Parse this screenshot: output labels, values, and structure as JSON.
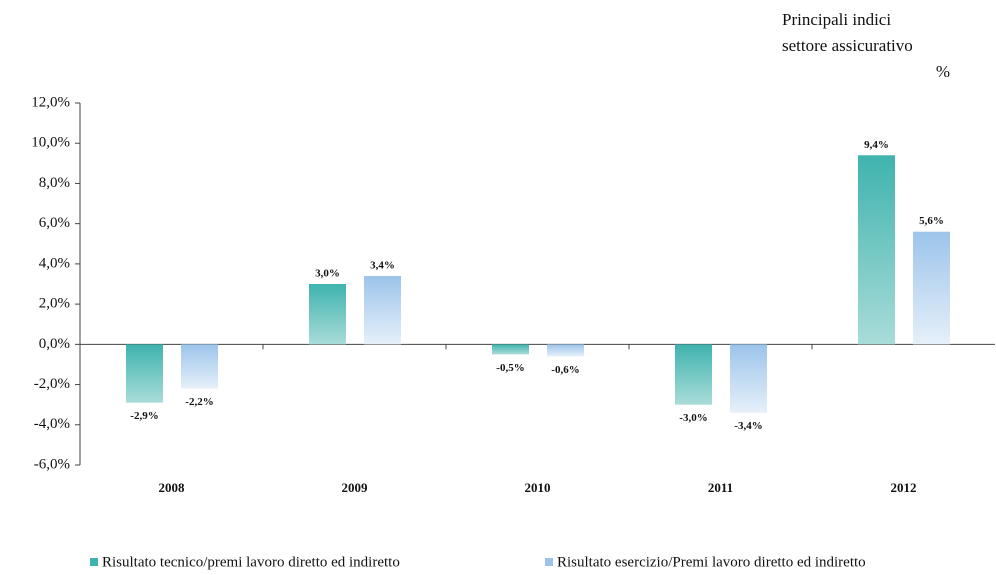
{
  "chart_data": {
    "type": "bar",
    "title": [
      "Principali indici",
      "settore assicurativo",
      "%"
    ],
    "categories": [
      "2008",
      "2009",
      "2010",
      "2011",
      "2012"
    ],
    "series": [
      {
        "name": "Risultato tecnico/premi lavoro diretto ed indiretto",
        "color": "#3fb3ae",
        "values": [
          -2.9,
          3.0,
          -0.5,
          -3.0,
          9.4
        ],
        "value_labels": [
          "-2,9%",
          "3,0%",
          "-0,5%",
          "-3,0%",
          "9,4%"
        ]
      },
      {
        "name": "Risultato esercizio/Premi lavoro diretto ed indiretto",
        "color": "#9cc4ea",
        "values": [
          -2.2,
          3.4,
          -0.6,
          -3.4,
          5.6
        ],
        "value_labels": [
          "-2,2%",
          "3,4%",
          "-0,6%",
          "-3,4%",
          "5,6%"
        ]
      }
    ],
    "ylim": [
      -6,
      12
    ],
    "yticks": [
      {
        "value": -6,
        "label": "-6,0%"
      },
      {
        "value": -4,
        "label": "-4,0%"
      },
      {
        "value": -2,
        "label": "-2,0%"
      },
      {
        "value": 0,
        "label": "0,0%"
      },
      {
        "value": 2,
        "label": "2,0%"
      },
      {
        "value": 4,
        "label": "4,0%"
      },
      {
        "value": 6,
        "label": "6,0%"
      },
      {
        "value": 8,
        "label": "8,0%"
      },
      {
        "value": 10,
        "label": "10,0%"
      },
      {
        "value": 12,
        "label": "12,0%"
      }
    ],
    "legend": "bottom"
  }
}
